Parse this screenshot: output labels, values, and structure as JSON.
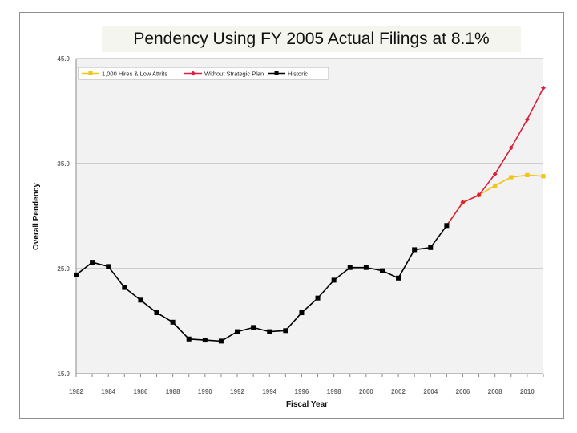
{
  "slide": {
    "title": "Pendency Using FY 2005 Actual Filings at 8.1%"
  },
  "chart_data": {
    "type": "line",
    "title": "Pendency Using FY 2005 Actual Filings at 8.1%",
    "xlabel": "Fiscal Year",
    "ylabel": "Overall Pendency",
    "xlim": [
      1982,
      2011
    ],
    "ylim": [
      15,
      45
    ],
    "x_ticks": [
      1982,
      1984,
      1986,
      1988,
      1990,
      1992,
      1994,
      1996,
      1998,
      2000,
      2002,
      2004,
      2006,
      2008,
      2010
    ],
    "y_ticks": [
      15.0,
      25.0,
      35.0,
      45.0
    ],
    "y_tick_labels": [
      "15.0",
      "25.0",
      "35.0",
      "45.0"
    ],
    "grid": "horizontal",
    "legend_position": "top-left",
    "series": [
      {
        "name": "1,000 Hires & Low Attrits",
        "color": "#f2c318",
        "marker": "square",
        "x": [
          2005,
          2006,
          2007,
          2008,
          2009,
          2010,
          2011
        ],
        "y": [
          29.1,
          31.3,
          32.0,
          32.9,
          33.7,
          33.9,
          33.8
        ]
      },
      {
        "name": "Without Strategic Plan",
        "color": "#d91f3a",
        "marker": "diamond",
        "x": [
          2005,
          2006,
          2007,
          2008,
          2009,
          2010,
          2011
        ],
        "y": [
          29.1,
          31.3,
          32.0,
          34.0,
          36.5,
          39.2,
          42.2
        ]
      },
      {
        "name": "Historic",
        "color": "#000000",
        "marker": "square",
        "x": [
          1982,
          1983,
          1984,
          1985,
          1986,
          1987,
          1988,
          1989,
          1990,
          1991,
          1992,
          1993,
          1994,
          1995,
          1996,
          1997,
          1998,
          1999,
          2000,
          2001,
          2002,
          2003,
          2004,
          2005
        ],
        "y": [
          24.4,
          25.6,
          25.2,
          23.2,
          22.0,
          20.8,
          19.9,
          18.3,
          18.2,
          18.1,
          19.0,
          19.4,
          19.0,
          19.1,
          20.8,
          22.2,
          23.9,
          25.1,
          25.1,
          24.8,
          24.1,
          26.8,
          27.0,
          29.1
        ]
      }
    ]
  }
}
